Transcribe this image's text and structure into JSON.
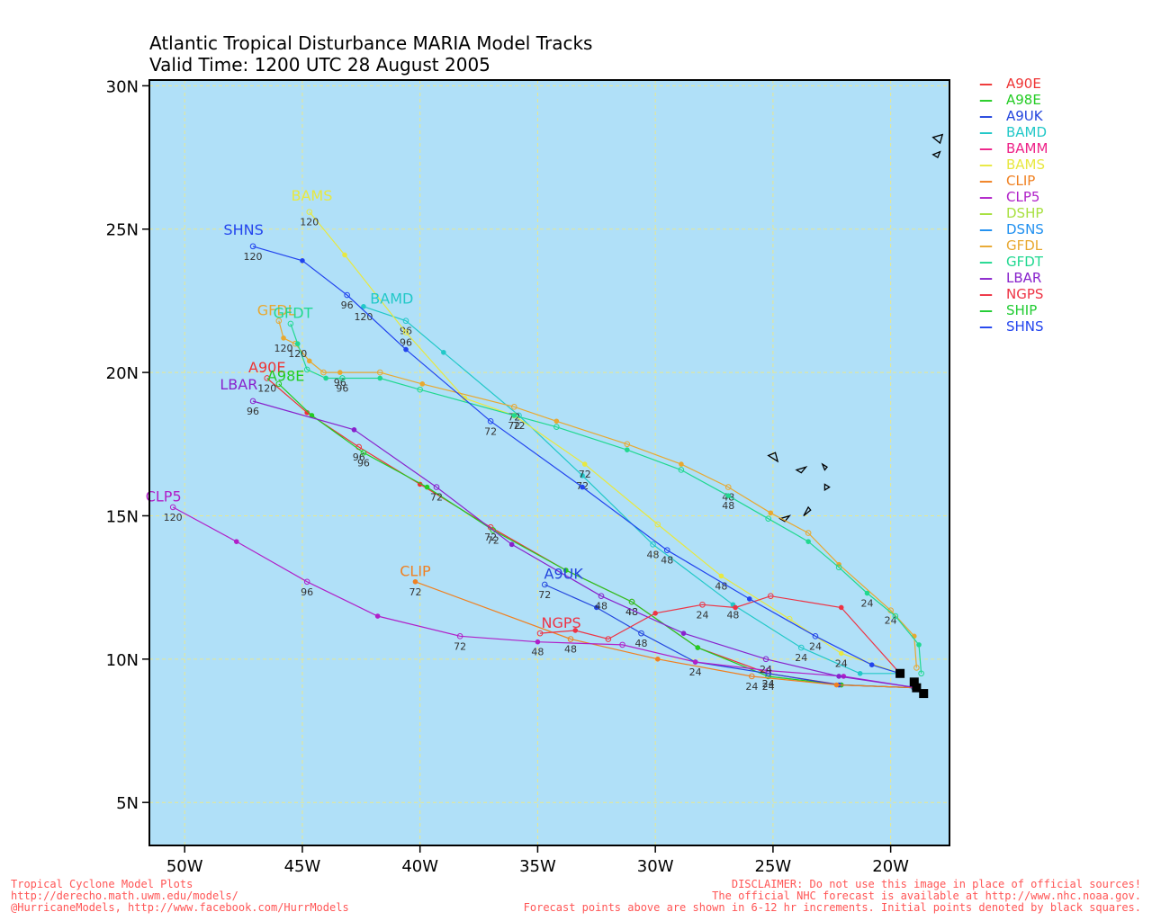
{
  "title": {
    "line1": "Atlantic Tropical Disturbance MARIA Model Tracks",
    "line2": "Valid Time: 1200 UTC 28 August 2005"
  },
  "footer": {
    "left1": "Tropical Cyclone Model Plots",
    "left2": "http://derecho.math.uwm.edu/models/",
    "left3": "@HurricaneModels, http://www.facebook.com/HurrModels",
    "right1": "DISCLAIMER: Do not use this image in place of official sources!",
    "right2": "The official NHC forecast is available at http://www.nhc.noaa.gov.",
    "right3": "Forecast points above are shown in 6-12 hr increments. Initial points denoted by black squares."
  },
  "map": {
    "lon_range": [
      -51.5,
      -17.5
    ],
    "lat_range": [
      3.5,
      30.2
    ],
    "lon_ticks": [
      {
        "v": -50,
        "label": "50W"
      },
      {
        "v": -45,
        "label": "45W"
      },
      {
        "v": -40,
        "label": "40W"
      },
      {
        "v": -35,
        "label": "35W"
      },
      {
        "v": -30,
        "label": "30W"
      },
      {
        "v": -25,
        "label": "25W"
      },
      {
        "v": -20,
        "label": "20W"
      }
    ],
    "lat_ticks": [
      {
        "v": 5,
        "label": "5N"
      },
      {
        "v": 10,
        "label": "10N"
      },
      {
        "v": 15,
        "label": "15N"
      },
      {
        "v": 20,
        "label": "20N"
      },
      {
        "v": 25,
        "label": "25N"
      },
      {
        "v": 30,
        "label": "30N"
      }
    ],
    "ocean_color": "#b0e0f8",
    "grid_color": "#e8e890",
    "grid": true
  },
  "legend": [
    {
      "name": "A90E",
      "color": "#ee3333"
    },
    {
      "name": "A98E",
      "color": "#22cc22"
    },
    {
      "name": "A9UK",
      "color": "#2244dd"
    },
    {
      "name": "BAMD",
      "color": "#22c8c8"
    },
    {
      "name": "BAMM",
      "color": "#ee2288"
    },
    {
      "name": "BAMS",
      "color": "#e8e840"
    },
    {
      "name": "CLIP",
      "color": "#f08020"
    },
    {
      "name": "CLP5",
      "color": "#b020c8"
    },
    {
      "name": "DSHP",
      "color": "#a8e040"
    },
    {
      "name": "DSNS",
      "color": "#2090f0"
    },
    {
      "name": "GFDL",
      "color": "#e8a830"
    },
    {
      "name": "GFDT",
      "color": "#20d890"
    },
    {
      "name": "LBAR",
      "color": "#8822cc"
    },
    {
      "name": "NGPS",
      "color": "#ee3344"
    },
    {
      "name": "SHIP",
      "color": "#22cc33"
    },
    {
      "name": "SHNS",
      "color": "#2244ee"
    }
  ],
  "chart_data": {
    "type": "map",
    "initial_points": [
      [
        -19.6,
        9.5
      ],
      [
        -19.0,
        9.2
      ],
      [
        -18.9,
        9.0
      ],
      [
        -18.6,
        8.8
      ]
    ],
    "tracks": [
      {
        "model": "A90E",
        "color": "#ee3333",
        "label_end": "A90E",
        "points": [
          [
            -19.0,
            9.0
          ],
          [
            -22.1,
            9.1
          ],
          [
            -25.2,
            9.5
          ],
          [
            -28.2,
            10.4
          ],
          [
            -31.0,
            12.0
          ],
          [
            -33.8,
            13.1
          ],
          [
            -37.0,
            14.6
          ],
          [
            -40.0,
            16.1
          ],
          [
            -42.6,
            17.4
          ],
          [
            -44.8,
            18.6
          ],
          [
            -46.5,
            19.8
          ]
        ],
        "tags": [
          {
            "i": 2,
            "t": "24"
          },
          {
            "i": 4,
            "t": "48"
          },
          {
            "i": 6,
            "t": "72"
          },
          {
            "i": 8,
            "t": "96"
          },
          {
            "i": 10,
            "t": "120"
          }
        ]
      },
      {
        "model": "A98E",
        "color": "#22cc22",
        "label_end": "A98E",
        "points": [
          [
            -19.0,
            9.0
          ],
          [
            -22.1,
            9.1
          ],
          [
            -25.2,
            9.4
          ],
          [
            -28.2,
            10.4
          ],
          [
            -31.0,
            12.0
          ],
          [
            -33.8,
            13.1
          ],
          [
            -36.9,
            14.5
          ],
          [
            -39.7,
            16.0
          ],
          [
            -42.4,
            17.2
          ],
          [
            -44.6,
            18.5
          ],
          [
            -46.0,
            19.6
          ]
        ],
        "tags": [
          {
            "i": 2,
            "t": "24"
          },
          {
            "i": 4,
            "t": "48"
          },
          {
            "i": 6,
            "t": "72"
          },
          {
            "i": 8,
            "t": "96"
          }
        ]
      },
      {
        "model": "A9UK",
        "color": "#2244dd",
        "label_end": "A9UK",
        "points": [
          [
            -19.0,
            9.0
          ],
          [
            -22.2,
            9.1
          ],
          [
            -25.2,
            9.5
          ],
          [
            -28.3,
            9.9
          ],
          [
            -30.6,
            10.9
          ],
          [
            -32.5,
            11.8
          ],
          [
            -34.7,
            12.6
          ]
        ],
        "tags": [
          {
            "i": 2,
            "t": "24"
          },
          {
            "i": 4,
            "t": "48"
          },
          {
            "i": 6,
            "t": "72"
          }
        ]
      },
      {
        "model": "BAMD",
        "color": "#22c8c8",
        "label_end": "BAMD",
        "points": [
          [
            -19.6,
            9.5
          ],
          [
            -21.3,
            9.5
          ],
          [
            -23.8,
            10.4
          ],
          [
            -26.7,
            11.9
          ],
          [
            -30.1,
            14.0
          ],
          [
            -33.1,
            16.4
          ],
          [
            -35.8,
            18.5
          ],
          [
            -39.0,
            20.7
          ],
          [
            -40.6,
            21.8
          ],
          [
            -42.4,
            22.3
          ]
        ],
        "tags": [
          {
            "i": 2,
            "t": "24"
          },
          {
            "i": 3,
            "t": "48"
          },
          {
            "i": 4,
            "t": "48"
          },
          {
            "i": 5,
            "t": "72"
          },
          {
            "i": 6,
            "t": "72"
          },
          {
            "i": 8,
            "t": "96"
          },
          {
            "i": 9,
            "t": "120"
          }
        ]
      },
      {
        "model": "BAMS",
        "color": "#e8e840",
        "label_end": "BAMS",
        "points": [
          [
            -19.6,
            9.5
          ],
          [
            -22.1,
            10.2
          ],
          [
            -24.3,
            11.4
          ],
          [
            -27.2,
            12.9
          ],
          [
            -29.9,
            14.7
          ],
          [
            -33.0,
            16.8
          ],
          [
            -36.0,
            18.5
          ],
          [
            -38.1,
            19.1
          ],
          [
            -40.6,
            21.4
          ],
          [
            -43.2,
            24.1
          ],
          [
            -44.7,
            25.6
          ]
        ],
        "tags": [
          {
            "i": 1,
            "t": "24"
          },
          {
            "i": 3,
            "t": "48"
          },
          {
            "i": 5,
            "t": "72"
          },
          {
            "i": 8,
            "t": "96"
          },
          {
            "i": 10,
            "t": "120"
          }
        ]
      },
      {
        "model": "CLIP",
        "color": "#f08020",
        "label_end": "CLIP",
        "points": [
          [
            -18.9,
            9.0
          ],
          [
            -22.3,
            9.1
          ],
          [
            -25.9,
            9.4
          ],
          [
            -29.9,
            10.0
          ],
          [
            -33.6,
            10.7
          ],
          [
            -40.2,
            12.7
          ]
        ],
        "tags": [
          {
            "i": 2,
            "t": "24"
          },
          {
            "i": 4,
            "t": "48"
          },
          {
            "i": 5,
            "t": "72"
          }
        ]
      },
      {
        "model": "CLP5",
        "color": "#b020c8",
        "label_end": "CLP5",
        "points": [
          [
            -18.9,
            9.0
          ],
          [
            -22.0,
            9.4
          ],
          [
            -25.2,
            9.6
          ],
          [
            -28.3,
            9.9
          ],
          [
            -31.4,
            10.5
          ],
          [
            -35.0,
            10.6
          ],
          [
            -38.3,
            10.8
          ],
          [
            -41.8,
            11.5
          ],
          [
            -44.8,
            12.7
          ],
          [
            -47.8,
            14.1
          ],
          [
            -50.5,
            15.3
          ]
        ],
        "tags": [
          {
            "i": 3,
            "t": "24"
          },
          {
            "i": 5,
            "t": "48"
          },
          {
            "i": 6,
            "t": "72"
          },
          {
            "i": 8,
            "t": "96"
          },
          {
            "i": 10,
            "t": "120"
          }
        ]
      },
      {
        "model": "GFDL",
        "color": "#e8a830",
        "label_end": "GFDL",
        "points": [
          [
            -18.9,
            9.7
          ],
          [
            -19.0,
            10.8
          ],
          [
            -20.0,
            11.7
          ],
          [
            -22.2,
            13.3
          ],
          [
            -23.5,
            14.4
          ],
          [
            -25.1,
            15.1
          ],
          [
            -26.9,
            16.0
          ],
          [
            -28.9,
            16.8
          ],
          [
            -31.2,
            17.5
          ],
          [
            -34.2,
            18.3
          ],
          [
            -36.0,
            18.8
          ],
          [
            -39.9,
            19.6
          ],
          [
            -41.7,
            20.0
          ],
          [
            -43.4,
            20.0
          ],
          [
            -44.1,
            20.0
          ],
          [
            -44.7,
            20.4
          ],
          [
            -45.3,
            21.0
          ],
          [
            -45.8,
            21.2
          ],
          [
            -46.0,
            21.8
          ]
        ],
        "tags": [
          {
            "i": 2,
            "t": "24"
          },
          {
            "i": 6,
            "t": "48"
          },
          {
            "i": 10,
            "t": "72"
          },
          {
            "i": 13,
            "t": "96"
          },
          {
            "i": 17,
            "t": "120"
          }
        ]
      },
      {
        "model": "GFDT",
        "color": "#20d890",
        "label_end": "GFDT",
        "points": [
          [
            -18.7,
            9.5
          ],
          [
            -18.8,
            10.5
          ],
          [
            -19.8,
            11.5
          ],
          [
            -21.0,
            12.3
          ],
          [
            -22.2,
            13.2
          ],
          [
            -23.5,
            14.1
          ],
          [
            -25.2,
            14.9
          ],
          [
            -26.9,
            15.7
          ],
          [
            -28.9,
            16.6
          ],
          [
            -31.2,
            17.3
          ],
          [
            -34.2,
            18.1
          ],
          [
            -36.0,
            18.5
          ],
          [
            -40.0,
            19.4
          ],
          [
            -41.7,
            19.8
          ],
          [
            -43.3,
            19.8
          ],
          [
            -44.0,
            19.8
          ],
          [
            -44.8,
            20.1
          ],
          [
            -45.2,
            21.0
          ],
          [
            -45.5,
            21.7
          ]
        ],
        "tags": [
          {
            "i": 3,
            "t": "24"
          },
          {
            "i": 7,
            "t": "48"
          },
          {
            "i": 11,
            "t": "72"
          },
          {
            "i": 14,
            "t": "96"
          },
          {
            "i": 17,
            "t": "120"
          }
        ]
      },
      {
        "model": "LBAR",
        "color": "#8822cc",
        "label_end": "LBAR",
        "points": [
          [
            -18.9,
            9.0
          ],
          [
            -22.2,
            9.4
          ],
          [
            -25.3,
            10.0
          ],
          [
            -28.8,
            10.9
          ],
          [
            -32.3,
            12.2
          ],
          [
            -36.1,
            14.0
          ],
          [
            -39.3,
            16.0
          ],
          [
            -42.8,
            18.0
          ],
          [
            -47.1,
            19.0
          ]
        ],
        "tags": [
          {
            "i": 2,
            "t": "24"
          },
          {
            "i": 4,
            "t": "48"
          },
          {
            "i": 6,
            "t": "72"
          },
          {
            "i": 8,
            "t": "96"
          }
        ]
      },
      {
        "model": "NGPS",
        "color": "#ee3344",
        "label_end": "NGPS",
        "points": [
          [
            -19.6,
            9.5
          ],
          [
            -22.1,
            11.8
          ],
          [
            -25.1,
            12.2
          ],
          [
            -26.6,
            11.8
          ],
          [
            -28.0,
            11.9
          ],
          [
            -30.0,
            11.6
          ],
          [
            -32.0,
            10.7
          ],
          [
            -33.4,
            11.0
          ],
          [
            -34.9,
            10.9
          ]
        ],
        "tags": [
          {
            "i": 4,
            "t": "24"
          }
        ]
      },
      {
        "model": "SHNS",
        "color": "#2244ee",
        "label_end": "SHNS",
        "points": [
          [
            -19.6,
            9.5
          ],
          [
            -20.8,
            9.8
          ],
          [
            -23.2,
            10.8
          ],
          [
            -26.0,
            12.1
          ],
          [
            -29.5,
            13.8
          ],
          [
            -33.1,
            16.0
          ],
          [
            -37.0,
            18.3
          ],
          [
            -40.6,
            20.8
          ],
          [
            -43.1,
            22.7
          ],
          [
            -45.0,
            23.9
          ],
          [
            -47.1,
            24.4
          ]
        ],
        "tags": [
          {
            "i": 2,
            "t": "24"
          },
          {
            "i": 4,
            "t": "48"
          },
          {
            "i": 6,
            "t": "72"
          },
          {
            "i": 8,
            "t": "96"
          },
          {
            "i": 10,
            "t": "120"
          }
        ]
      }
    ],
    "end_labels": [
      {
        "text": "SHNS",
        "at": [
          -47.5,
          24.8
        ],
        "color": "#2244ee"
      },
      {
        "text": "BAMS",
        "at": [
          -44.6,
          26.0
        ],
        "color": "#e8e840"
      },
      {
        "text": "BAMD",
        "at": [
          -41.2,
          22.4
        ],
        "color": "#22c8c8"
      },
      {
        "text": "GFDL",
        "at": [
          -46.1,
          22.0
        ],
        "color": "#e8a830"
      },
      {
        "text": "GFDT",
        "at": [
          -45.4,
          21.9
        ],
        "color": "#20d890"
      },
      {
        "text": "A90E",
        "at": [
          -46.5,
          20.0
        ],
        "color": "#ee3333"
      },
      {
        "text": "A98E",
        "at": [
          -45.7,
          19.7
        ],
        "color": "#22cc22"
      },
      {
        "text": "LBAR",
        "at": [
          -47.7,
          19.4
        ],
        "color": "#8822cc"
      },
      {
        "text": "CLP5",
        "at": [
          -50.9,
          15.5
        ],
        "color": "#b020c8"
      },
      {
        "text": "CLIP",
        "at": [
          -40.2,
          12.9
        ],
        "color": "#f08020"
      },
      {
        "text": "A9UK",
        "at": [
          -33.9,
          12.8
        ],
        "color": "#2244dd"
      },
      {
        "text": "NGPS",
        "at": [
          -34.0,
          11.1
        ],
        "color": "#ee3344"
      }
    ],
    "islands": [
      [
        [
          -18.2,
          28.2
        ],
        [
          -17.9,
          28.0
        ],
        [
          -17.8,
          28.3
        ]
      ],
      [
        [
          -18.0,
          27.5
        ],
        [
          -17.9,
          27.7
        ],
        [
          -18.2,
          27.6
        ]
      ],
      [
        [
          -25.2,
          17.1
        ],
        [
          -24.8,
          16.9
        ],
        [
          -24.9,
          17.2
        ]
      ],
      [
        [
          -24.0,
          16.6
        ],
        [
          -23.6,
          16.7
        ],
        [
          -23.8,
          16.5
        ]
      ],
      [
        [
          -22.9,
          16.8
        ],
        [
          -22.7,
          16.7
        ],
        [
          -22.8,
          16.6
        ]
      ],
      [
        [
          -22.8,
          16.1
        ],
        [
          -22.6,
          16.0
        ],
        [
          -22.8,
          15.9
        ]
      ],
      [
        [
          -24.7,
          14.9
        ],
        [
          -24.5,
          14.8
        ],
        [
          -24.3,
          15.0
        ]
      ],
      [
        [
          -23.7,
          15.0
        ],
        [
          -23.4,
          15.2
        ],
        [
          -23.5,
          15.3
        ]
      ]
    ]
  }
}
